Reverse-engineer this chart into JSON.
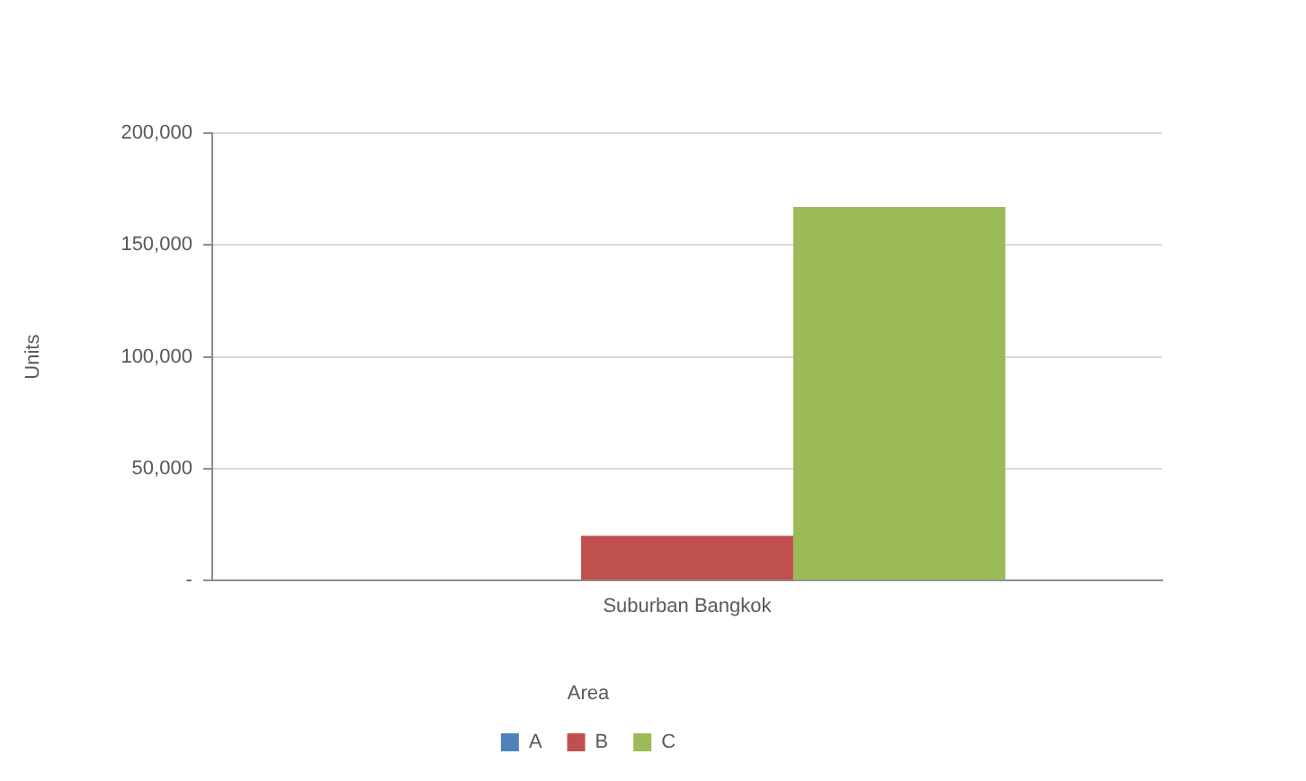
{
  "chart_data": {
    "type": "bar",
    "categories": [
      "Suburban Bangkok"
    ],
    "series": [
      {
        "name": "A",
        "color": "#4f81bd",
        "values": [
          0
        ]
      },
      {
        "name": "B",
        "color": "#c0504d",
        "values": [
          20000
        ]
      },
      {
        "name": "C",
        "color": "#9bbb59",
        "values": [
          167000
        ]
      }
    ],
    "ylabel": "Units",
    "legend_title": "Area",
    "legend": "bottom",
    "grid": "y",
    "ylim": [
      0,
      200000
    ],
    "yticks": [
      {
        "value": 0,
        "label": "-"
      },
      {
        "value": 50000,
        "label": "50,000"
      },
      {
        "value": 100000,
        "label": "100,000"
      },
      {
        "value": 150000,
        "label": "150,000"
      },
      {
        "value": 200000,
        "label": "200,000"
      }
    ]
  }
}
